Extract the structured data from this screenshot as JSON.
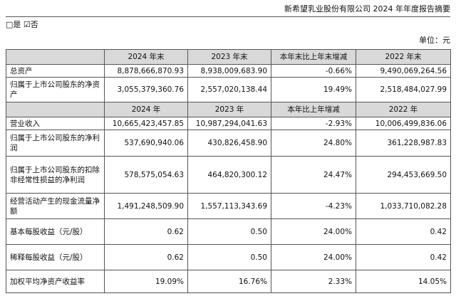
{
  "header": {
    "title": "新希望乳业股份有限公司 2024 年年度报告摘要",
    "checkbox_line": "□是 ☑否",
    "unit": "单位：元"
  },
  "table": {
    "header1": [
      "",
      "2024 年末",
      "2023 年末",
      "本年末比上年末增减",
      "2022 年末"
    ],
    "header2": [
      "",
      "2024 年",
      "2023 年",
      "本年比上年增减",
      "2022 年"
    ],
    "rows_a": [
      {
        "label": "总资产",
        "v2024": "8,878,666,870.93",
        "v2023": "8,938,009,683.90",
        "change": "-0.66%",
        "v2022": "9,490,069,264.56"
      },
      {
        "label": "归属于上市公司股东的净资产",
        "v2024": "3,055,379,360.76",
        "v2023": "2,557,020,138.44",
        "change": "19.49%",
        "v2022": "2,518,484,027.99"
      }
    ],
    "rows_b": [
      {
        "label": "营业收入",
        "v2024": "10,665,423,457.85",
        "v2023": "10,987,294,041.63",
        "change": "-2.93%",
        "v2022": "10,006,499,836.06"
      },
      {
        "label": "归属于上市公司股东的净利润",
        "v2024": "537,690,940.06",
        "v2023": "430,826,458.90",
        "change": "24.80%",
        "v2022": "361,228,987.83"
      },
      {
        "label": "归属于上市公司股东的扣除非经常性损益的净利润",
        "v2024": "578,575,054.63",
        "v2023": "464,820,300.12",
        "change": "24.47%",
        "v2022": "294,453,669.50"
      },
      {
        "label": "经营活动产生的现金流量净额",
        "v2024": "1,491,248,509.90",
        "v2023": "1,557,113,343.69",
        "change": "-4.23%",
        "v2022": "1,033,710,082.28"
      },
      {
        "label": "基本每股收益（元/股）",
        "v2024": "0.62",
        "v2023": "0.50",
        "change": "24.00%",
        "v2022": "0.42"
      },
      {
        "label": "稀释每股收益（元/股）",
        "v2024": "0.62",
        "v2023": "0.50",
        "change": "24.00%",
        "v2022": "0.42"
      },
      {
        "label": "加权平均净资产收益率",
        "v2024": "19.09%",
        "v2023": "16.76%",
        "change": "2.33%",
        "v2022": "14.05%"
      }
    ]
  }
}
